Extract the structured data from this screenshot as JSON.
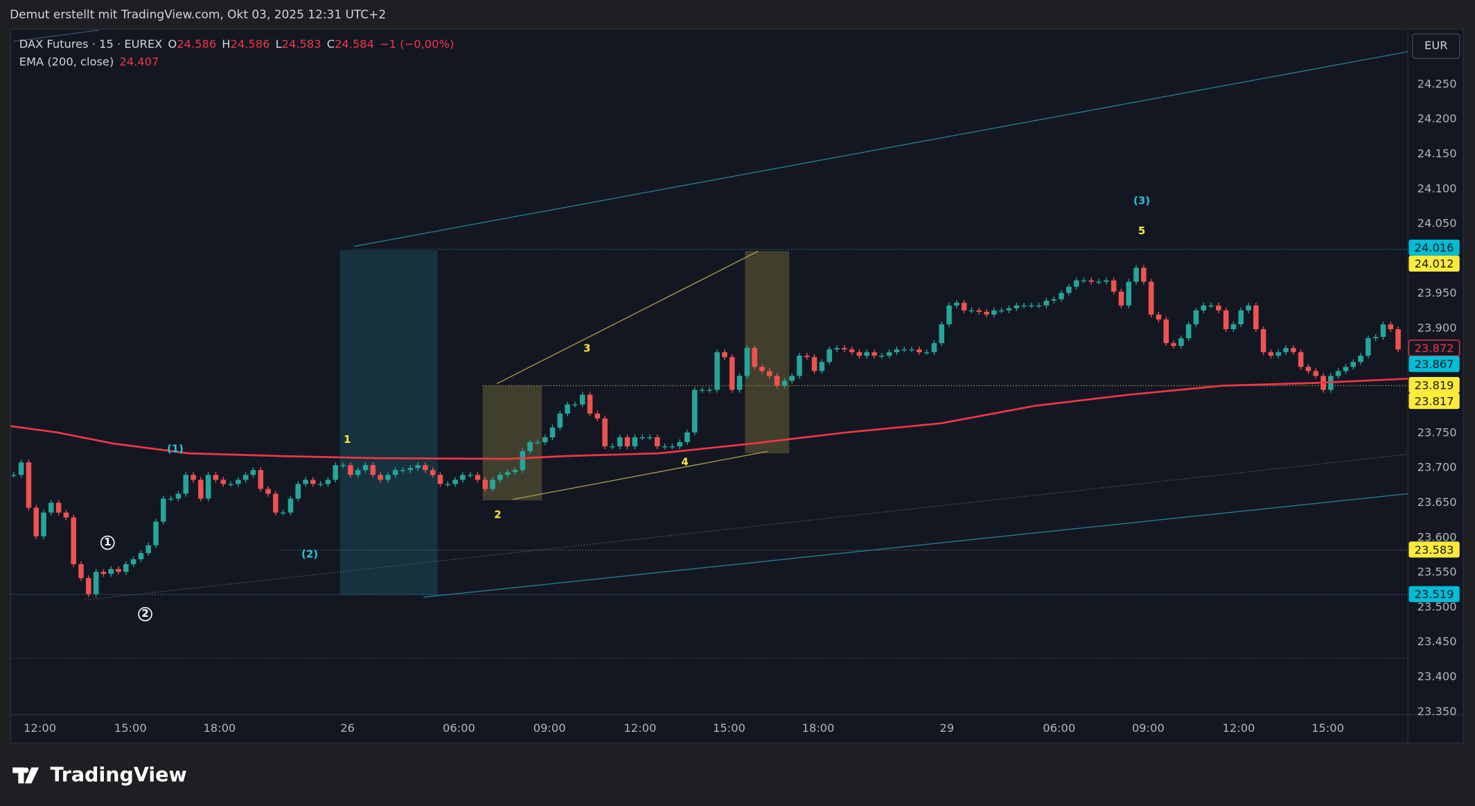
{
  "header": {
    "text": "Demut erstellt mit TradingView.com, Okt 03, 2025 12:31 UTC+2"
  },
  "logo": "TradingView",
  "chart_data": {
    "type": "candlestick",
    "symbol": "DAX Futures · 15 · EUREX",
    "ohlc_legend": [
      {
        "label": "O",
        "value": 24.586
      },
      {
        "label": "H",
        "value": 24.586
      },
      {
        "label": "L",
        "value": 24.583
      },
      {
        "label": "C",
        "value": 24.584
      }
    ],
    "change": "−1 (−0,00%)",
    "currency": "EUR",
    "colors": {
      "up": "#26a69a",
      "down": "#ef5350"
    },
    "close": [
      23.69,
      23.708,
      23.643,
      23.602,
      23.636,
      23.65,
      23.636,
      23.629,
      23.562,
      23.542,
      23.519,
      23.551,
      23.548,
      23.555,
      23.551,
      23.562,
      23.569,
      23.578,
      23.589,
      23.623,
      23.656,
      23.656,
      23.663,
      23.69,
      23.683,
      23.656,
      23.69,
      23.683,
      23.677,
      23.677,
      23.683,
      23.69,
      23.697,
      23.67,
      23.663,
      23.636,
      23.636,
      23.656,
      23.677,
      23.683,
      23.677,
      23.677,
      23.683,
      23.704,
      23.704,
      23.69,
      23.697,
      23.704,
      23.69,
      23.683,
      23.69,
      23.697,
      23.697,
      23.7,
      23.704,
      23.697,
      23.69,
      23.677,
      23.677,
      23.683,
      23.69,
      23.69,
      23.683,
      23.67,
      23.683,
      23.69,
      23.694,
      23.697,
      23.724,
      23.737,
      23.737,
      23.744,
      23.758,
      23.778,
      23.791,
      23.791,
      23.805,
      23.778,
      23.771,
      23.731,
      23.731,
      23.744,
      23.731,
      23.744,
      23.744,
      23.744,
      23.731,
      23.731,
      23.731,
      23.737,
      23.751,
      23.812,
      23.812,
      23.812,
      23.866,
      23.859,
      23.812,
      23.832,
      23.872,
      23.845,
      23.839,
      23.832,
      23.818,
      23.825,
      23.832,
      23.861,
      23.859,
      23.839,
      23.852,
      23.87,
      23.872,
      23.87,
      23.866,
      23.861,
      23.866,
      23.861,
      23.861,
      23.866,
      23.87,
      23.87,
      23.87,
      23.866,
      23.866,
      23.879,
      23.906,
      23.933,
      23.937,
      23.926,
      23.926,
      23.924,
      23.92,
      23.926,
      23.926,
      23.929,
      23.933,
      23.933,
      23.933,
      23.933,
      23.94,
      23.942,
      23.951,
      23.96,
      23.969,
      23.969,
      23.967,
      23.967,
      23.969,
      23.953,
      23.933,
      23.967,
      23.987,
      23.967,
      23.92,
      23.913,
      23.879,
      23.875,
      23.886,
      23.906,
      23.926,
      23.933,
      23.933,
      23.926,
      23.899,
      23.906,
      23.926,
      23.933,
      23.899,
      23.866,
      23.861,
      23.866,
      23.872,
      23.866,
      23.845,
      23.839,
      23.832,
      23.812,
      23.832,
      23.839,
      23.845,
      23.852,
      23.861,
      23.886,
      23.888,
      23.906,
      23.899,
      23.87
    ],
    "xlim": [
      -0.4,
      186.3
    ],
    "xticks": [
      {
        "value": 3.5,
        "label": "12:00"
      },
      {
        "value": 15.6,
        "label": "15:00"
      },
      {
        "value": 27.5,
        "label": "18:00"
      },
      {
        "value": 44.6,
        "label": "26"
      },
      {
        "value": 59.5,
        "label": "06:00"
      },
      {
        "value": 71.6,
        "label": "09:00"
      },
      {
        "value": 83.7,
        "label": "12:00"
      },
      {
        "value": 95.6,
        "label": "15:00"
      },
      {
        "value": 107.5,
        "label": "18:00"
      },
      {
        "value": 124.7,
        "label": "29"
      },
      {
        "value": 139.7,
        "label": "06:00"
      },
      {
        "value": 151.6,
        "label": "09:00"
      },
      {
        "value": 163.7,
        "label": "12:00"
      },
      {
        "value": 175.6,
        "label": "15:00"
      }
    ],
    "ylim": [
      23.346,
      24.328
    ],
    "yticks": [
      {
        "value": 23.35,
        "label": "23.350"
      },
      {
        "value": 23.4,
        "label": "23.400"
      },
      {
        "value": 23.45,
        "label": "23.450"
      },
      {
        "value": 23.5,
        "label": "23.500"
      },
      {
        "value": 23.55,
        "label": "23.550"
      },
      {
        "value": 23.6,
        "label": "23.600"
      },
      {
        "value": 23.65,
        "label": "23.650"
      },
      {
        "value": 23.7,
        "label": "23.700"
      },
      {
        "value": 23.75,
        "label": "23.750"
      },
      {
        "value": 23.8,
        "label": "23.800"
      },
      {
        "value": 23.85,
        "label": "23.850"
      },
      {
        "value": 23.9,
        "label": "23.900"
      },
      {
        "value": 23.95,
        "label": "23.950"
      },
      {
        "value": 24.0,
        "label": "24.000"
      },
      {
        "value": 24.05,
        "label": "24.050"
      },
      {
        "value": 24.1,
        "label": "24.100"
      },
      {
        "value": 24.15,
        "label": "24.150"
      },
      {
        "value": 24.2,
        "label": "24.200"
      },
      {
        "value": 24.25,
        "label": "24.250"
      }
    ],
    "grid": false,
    "ema": {
      "name": "EMA (200, close)",
      "last": 24.407,
      "color": "#f23645",
      "x": [
        -0.4,
        5.8,
        13.3,
        23.4,
        35.9,
        48.5,
        66.1,
        73.6,
        86.2,
        98.7,
        111.3,
        123.9,
        136.4,
        149.0,
        161.6,
        174.1,
        186.3
      ],
      "values": [
        23.76,
        23.751,
        23.735,
        23.721,
        23.717,
        23.714,
        23.713,
        23.717,
        23.721,
        23.735,
        23.751,
        23.764,
        23.789,
        23.805,
        23.818,
        23.822,
        23.828
      ]
    },
    "price_labels": [
      {
        "value": 24.016,
        "color": "#00bcd4",
        "outline": false
      },
      {
        "value": 24.012,
        "color": "#ffeb3b",
        "outline": false
      },
      {
        "value": 23.872,
        "color": "#f23645",
        "outline": true
      },
      {
        "value": 23.867,
        "color": "#00bcd4",
        "outline": false
      },
      {
        "value": 23.819,
        "color": "#ffeb3b",
        "outline": false
      },
      {
        "value": 23.817,
        "color": "#ffeb3b",
        "outline": false
      },
      {
        "value": 23.583,
        "color": "#ffeb3b",
        "outline": false
      },
      {
        "value": 23.519,
        "color": "#00bcd4",
        "outline": false
      }
    ],
    "annotations": [
      "(1)",
      "1",
      "(2)",
      "2",
      "3",
      "4",
      "5",
      "(3)",
      "1",
      "2"
    ]
  }
}
